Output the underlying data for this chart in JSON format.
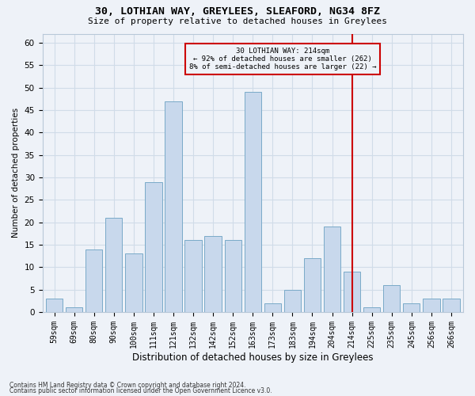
{
  "title1": "30, LOTHIAN WAY, GREYLEES, SLEAFORD, NG34 8FZ",
  "title2": "Size of property relative to detached houses in Greylees",
  "xlabel": "Distribution of detached houses by size in Greylees",
  "ylabel": "Number of detached properties",
  "categories": [
    "59sqm",
    "69sqm",
    "80sqm",
    "90sqm",
    "100sqm",
    "111sqm",
    "121sqm",
    "132sqm",
    "142sqm",
    "152sqm",
    "163sqm",
    "173sqm",
    "183sqm",
    "194sqm",
    "204sqm",
    "214sqm",
    "225sqm",
    "235sqm",
    "245sqm",
    "256sqm",
    "266sqm"
  ],
  "values": [
    3,
    1,
    14,
    21,
    13,
    29,
    47,
    16,
    17,
    16,
    49,
    2,
    5,
    12,
    19,
    9,
    1,
    6,
    2,
    3,
    3
  ],
  "bar_color": "#c8d8ec",
  "bar_edge_color": "#7aaac8",
  "bar_width": 0.85,
  "vline_x_index": 15,
  "vline_color": "#cc0000",
  "annotation_title": "30 LOTHIAN WAY: 214sqm",
  "annotation_line1": "← 92% of detached houses are smaller (262)",
  "annotation_line2": "8% of semi-detached houses are larger (22) →",
  "annotation_box_color": "#cc0000",
  "ylim": [
    0,
    62
  ],
  "yticks": [
    0,
    5,
    10,
    15,
    20,
    25,
    30,
    35,
    40,
    45,
    50,
    55,
    60
  ],
  "grid_color": "#d0dce8",
  "background_color": "#eef2f8",
  "footnote1": "Contains HM Land Registry data © Crown copyright and database right 2024.",
  "footnote2": "Contains public sector information licensed under the Open Government Licence v3.0."
}
